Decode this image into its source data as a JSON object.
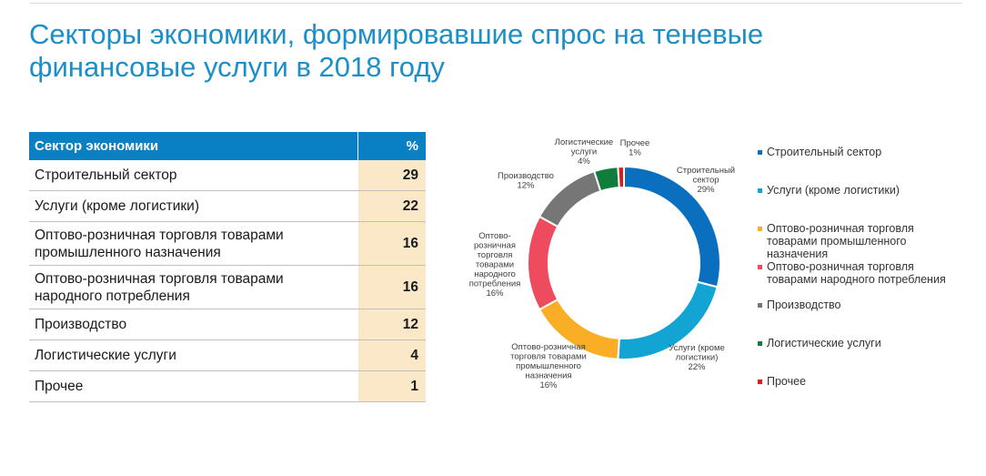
{
  "page": {
    "title_line1": "Секторы экономики, формировавшие спрос на теневые",
    "title_line2": "финансовые услуги в 2018 году"
  },
  "table": {
    "header_sector": "Сектор экономики",
    "header_pct": "%",
    "rows": [
      {
        "line1": "Строительный сектор",
        "line2": "",
        "value": "29"
      },
      {
        "line1": "Услуги (кроме логистики)",
        "line2": "",
        "value": "22"
      },
      {
        "line1": "Оптово-розничная торговля товарами",
        "line2": "промышленного назначения",
        "value": "16"
      },
      {
        "line1": "Оптово-розничная торговля товарами",
        "line2": "народного потребления",
        "value": "16"
      },
      {
        "line1": "Производство",
        "line2": "",
        "value": "12"
      },
      {
        "line1": "Логистические услуги",
        "line2": "",
        "value": "4"
      },
      {
        "line1": "Прочее",
        "line2": "",
        "value": "1"
      }
    ]
  },
  "chart_data": {
    "type": "pie",
    "variant": "donut",
    "start_angle": "12 o'clock",
    "direction": "clockwise",
    "legend_position": "right",
    "series": [
      {
        "name": "Строительный сектор",
        "value": 29,
        "color": "#0b6fc0",
        "label_lines": [
          "Строительный",
          "сектор",
          "29%"
        ],
        "legend_lines": [
          "Строительный сектор"
        ]
      },
      {
        "name": "Услуги (кроме логистики)",
        "value": 22,
        "color": "#12a5d4",
        "label_lines": [
          "Услуги (кроме",
          "логистики)",
          "22%"
        ],
        "legend_lines": [
          "Услуги (кроме логистики)"
        ]
      },
      {
        "name": "Оптово-розничная торговля товарами промышленного назначения",
        "value": 16,
        "color": "#f9ae25",
        "label_lines": [
          "Оптово-розничная",
          "торговля товарами",
          "промышленного",
          "назначения",
          "16%"
        ],
        "legend_lines": [
          "Оптово-розничная торговля",
          "товарами промышленного",
          "назначения"
        ]
      },
      {
        "name": "Оптово-розничная торговля товарами народного потребления",
        "value": 16,
        "color": "#ee4b5e",
        "label_lines": [
          "Оптово-",
          "розничная",
          "торговля",
          "товарами",
          "народного",
          "потребления",
          "16%"
        ],
        "legend_lines": [
          "Оптово-розничная торговля",
          "товарами народного потребления"
        ]
      },
      {
        "name": "Производство",
        "value": 12,
        "color": "#767676",
        "label_lines": [
          "Производство",
          "12%"
        ],
        "legend_lines": [
          "Производство"
        ]
      },
      {
        "name": "Логистические услуги",
        "value": 4,
        "color": "#0f7d3b",
        "label_lines": [
          "Логистические",
          "услуги",
          "4%"
        ],
        "legend_lines": [
          "Логистические услуги"
        ]
      },
      {
        "name": "Прочее",
        "value": 1,
        "color": "#d61e1e",
        "label_lines": [
          "Прочее",
          "1%"
        ],
        "legend_lines": [
          "Прочее"
        ]
      }
    ]
  }
}
